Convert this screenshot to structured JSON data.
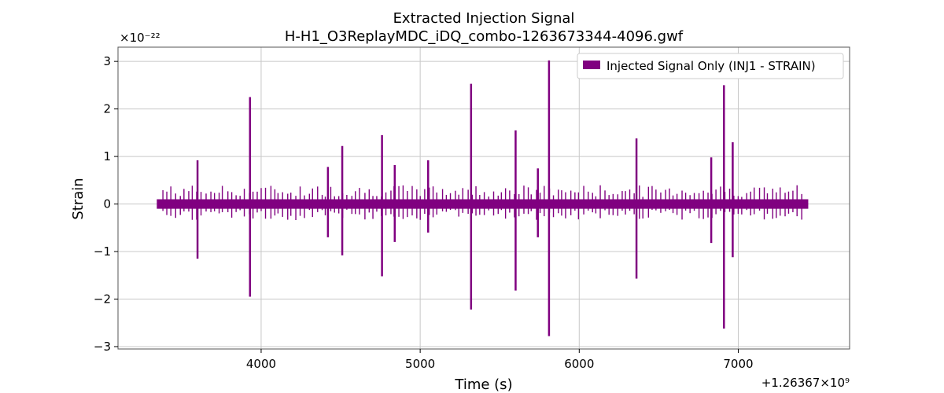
{
  "chart_data": {
    "type": "line",
    "title": "Extracted Injection Signal",
    "subtitle": "H-H1_O3ReplayMDC_iDQ_combo-1263673344-4096.gwf",
    "xlabel": "Time (s)",
    "ylabel": "Strain",
    "x_offset_label": "+1.26367×10⁹",
    "y_scale_label": "×10⁻²²",
    "xlim": [
      3100,
      7700
    ],
    "ylim": [
      -3.05,
      3.3
    ],
    "x_ticks": [
      4000,
      5000,
      6000,
      7000
    ],
    "x_tick_labels": [
      "4000",
      "5000",
      "6000",
      "7000"
    ],
    "y_ticks": [
      -3,
      -2,
      -1,
      0,
      1,
      2,
      3
    ],
    "y_tick_labels": [
      "−3",
      "−2",
      "−1",
      "0",
      "1",
      "2",
      "3"
    ],
    "grid": true,
    "legend_position": "top-right",
    "color": "#800080",
    "series": [
      {
        "name": "Injected Signal Only (INJ1 - STRAIN)",
        "x_range": [
          3344,
          7440
        ],
        "baseline_amplitude": 0.1,
        "spikes": [
          {
            "x": 3600,
            "max": 0.92,
            "min": -1.15
          },
          {
            "x": 3930,
            "max": 2.25,
            "min": -1.95
          },
          {
            "x": 4420,
            "max": 0.78,
            "min": -0.7
          },
          {
            "x": 4510,
            "max": 1.22,
            "min": -1.08
          },
          {
            "x": 4760,
            "max": 1.45,
            "min": -1.52
          },
          {
            "x": 4840,
            "max": 0.82,
            "min": -0.8
          },
          {
            "x": 5050,
            "max": 0.92,
            "min": -0.6
          },
          {
            "x": 5320,
            "max": 2.53,
            "min": -2.22
          },
          {
            "x": 5600,
            "max": 1.55,
            "min": -1.82
          },
          {
            "x": 5740,
            "max": 0.75,
            "min": -0.7
          },
          {
            "x": 5810,
            "max": 3.02,
            "min": -2.78
          },
          {
            "x": 6360,
            "max": 1.38,
            "min": -1.57
          },
          {
            "x": 6830,
            "max": 0.98,
            "min": -0.82
          },
          {
            "x": 6910,
            "max": 2.5,
            "min": -2.62
          },
          {
            "x": 6965,
            "max": 1.3,
            "min": -1.12
          }
        ]
      }
    ]
  }
}
